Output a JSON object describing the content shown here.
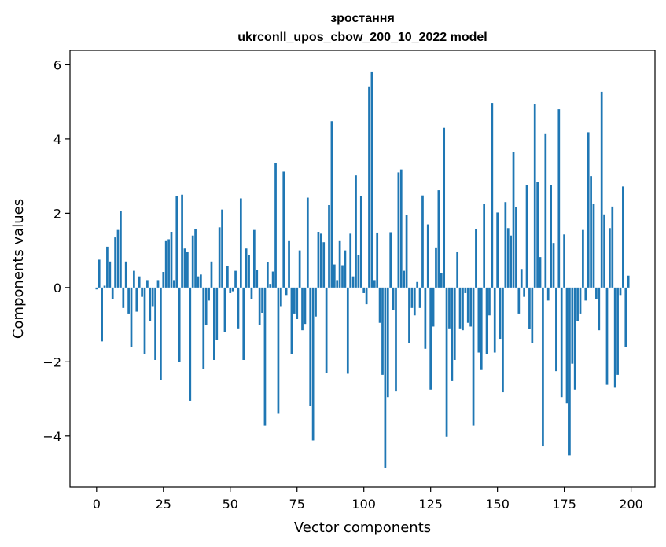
{
  "chart_data": {
    "type": "bar",
    "title_line1": "зростання",
    "title_line2": "ukrconll_upos_cbow_200_10_2022 model",
    "xlabel": "Vector components",
    "ylabel": "Components values",
    "xlim": [
      -9.95,
      208.95
    ],
    "ylim": [
      -5.38,
      6.39
    ],
    "xticks": [
      0,
      25,
      50,
      75,
      100,
      125,
      150,
      175,
      200
    ],
    "xtick_labels": [
      "0",
      "25",
      "50",
      "75",
      "100",
      "125",
      "150",
      "175",
      "200"
    ],
    "yticks": [
      -4,
      -2,
      0,
      2,
      4,
      6
    ],
    "ytick_labels": [
      "−4",
      "−2",
      "0",
      "2",
      "4",
      "6"
    ],
    "bar_color": "#1f77b4",
    "grid": false,
    "legend": "none",
    "x": [
      0,
      1,
      2,
      3,
      4,
      5,
      6,
      7,
      8,
      9,
      10,
      11,
      12,
      13,
      14,
      15,
      16,
      17,
      18,
      19,
      20,
      21,
      22,
      23,
      24,
      25,
      26,
      27,
      28,
      29,
      30,
      31,
      32,
      33,
      34,
      35,
      36,
      37,
      38,
      39,
      40,
      41,
      42,
      43,
      44,
      45,
      46,
      47,
      48,
      49,
      50,
      51,
      52,
      53,
      54,
      55,
      56,
      57,
      58,
      59,
      60,
      61,
      62,
      63,
      64,
      65,
      66,
      67,
      68,
      69,
      70,
      71,
      72,
      73,
      74,
      75,
      76,
      77,
      78,
      79,
      80,
      81,
      82,
      83,
      84,
      85,
      86,
      87,
      88,
      89,
      90,
      91,
      92,
      93,
      94,
      95,
      96,
      97,
      98,
      99,
      100,
      101,
      102,
      103,
      104,
      105,
      106,
      107,
      108,
      109,
      110,
      111,
      112,
      113,
      114,
      115,
      116,
      117,
      118,
      119,
      120,
      121,
      122,
      123,
      124,
      125,
      126,
      127,
      128,
      129,
      130,
      131,
      132,
      133,
      134,
      135,
      136,
      137,
      138,
      139,
      140,
      141,
      142,
      143,
      144,
      145,
      146,
      147,
      148,
      149,
      150,
      151,
      152,
      153,
      154,
      155,
      156,
      157,
      158,
      159,
      160,
      161,
      162,
      163,
      164,
      165,
      166,
      167,
      168,
      169,
      170,
      171,
      172,
      173,
      174,
      175,
      176,
      177,
      178,
      179,
      180,
      181,
      182,
      183,
      184,
      185,
      186,
      187,
      188,
      189,
      190,
      191,
      192,
      193,
      194,
      195,
      196,
      197,
      198,
      199
    ],
    "values": [
      -0.05,
      0.75,
      -1.45,
      0.05,
      1.1,
      0.7,
      -0.3,
      1.35,
      1.55,
      2.07,
      -0.55,
      0.7,
      -0.7,
      -1.6,
      0.45,
      -0.65,
      0.3,
      -0.25,
      -1.8,
      0.2,
      -0.9,
      -0.5,
      -1.95,
      0.2,
      -2.5,
      0.42,
      1.25,
      1.3,
      1.5,
      0.2,
      2.47,
      -2.0,
      2.5,
      1.05,
      0.95,
      -3.05,
      1.4,
      1.58,
      0.3,
      0.35,
      -2.2,
      -1.0,
      -0.35,
      0.7,
      -1.95,
      -1.4,
      1.62,
      2.1,
      -1.2,
      0.58,
      -0.15,
      -0.1,
      0.45,
      -1.1,
      2.4,
      -1.95,
      1.05,
      0.88,
      -0.3,
      1.55,
      0.47,
      -1.0,
      -0.68,
      -3.72,
      0.68,
      0.1,
      0.43,
      3.35,
      -3.4,
      -0.5,
      3.12,
      -0.2,
      1.25,
      -1.8,
      -0.7,
      -0.85,
      1.0,
      -1.15,
      -0.98,
      2.42,
      -3.18,
      -4.12,
      -0.78,
      1.5,
      1.45,
      1.22,
      -2.3,
      2.22,
      4.48,
      0.62,
      0.2,
      1.25,
      0.6,
      1.0,
      -2.32,
      1.45,
      0.3,
      3.02,
      0.88,
      2.47,
      -0.15,
      -0.45,
      5.4,
      5.82,
      0.2,
      1.48,
      -0.95,
      -2.35,
      -4.85,
      -2.95,
      1.49,
      -0.6,
      -2.8,
      3.1,
      3.18,
      0.45,
      1.95,
      -1.5,
      -0.55,
      -0.75,
      0.15,
      -0.55,
      2.48,
      -1.65,
      1.7,
      -2.75,
      -1.05,
      1.08,
      2.62,
      0.38,
      4.3,
      -4.02,
      -1.1,
      -2.52,
      -1.95,
      0.95,
      -1.1,
      -1.15,
      -0.15,
      -0.95,
      -1.05,
      -3.72,
      1.58,
      -1.75,
      -2.22,
      2.25,
      -1.8,
      -0.75,
      4.97,
      -1.75,
      2.02,
      -1.38,
      -2.82,
      2.3,
      1.6,
      1.4,
      3.65,
      2.17,
      -0.7,
      0.5,
      -0.25,
      2.75,
      -1.12,
      -1.5,
      4.95,
      2.85,
      0.82,
      -4.28,
      4.15,
      -0.35,
      2.75,
      1.2,
      -2.25,
      4.8,
      -2.95,
      1.43,
      -3.12,
      -4.52,
      -2.05,
      -2.75,
      -0.9,
      -0.7,
      1.55,
      -0.35,
      4.18,
      3.0,
      2.25,
      -0.3,
      -1.15,
      5.27,
      1.97,
      -2.62,
      1.6,
      2.18,
      -2.7,
      -2.35,
      -0.2,
      2.72,
      -1.6,
      0.32
    ]
  }
}
